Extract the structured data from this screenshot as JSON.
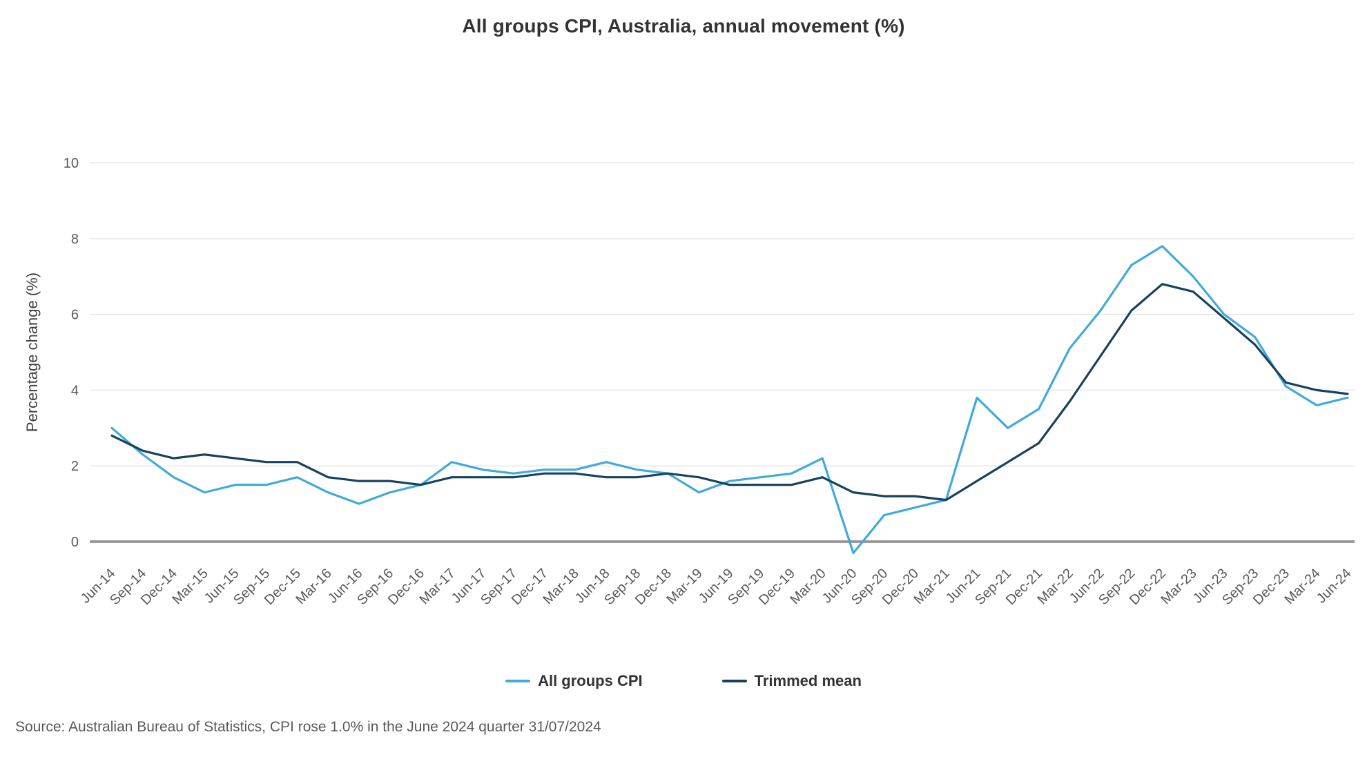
{
  "footer": {
    "source": "Source: Australian Bureau of Statistics, CPI rose 1.0% in the June 2024 quarter 31/07/2024"
  },
  "chart_data": {
    "type": "line",
    "title": "All groups CPI, Australia, annual movement (%)",
    "xlabel": "",
    "ylabel": "Percentage change (%)",
    "ylim": [
      0,
      10
    ],
    "yticks": [
      0,
      2,
      4,
      6,
      8,
      10
    ],
    "grid": "horizontal",
    "legend_position": "bottom-center",
    "categories": [
      "Jun-14",
      "Sep-14",
      "Dec-14",
      "Mar-15",
      "Jun-15",
      "Sep-15",
      "Dec-15",
      "Mar-16",
      "Jun-16",
      "Sep-16",
      "Dec-16",
      "Mar-17",
      "Jun-17",
      "Sep-17",
      "Dec-17",
      "Mar-18",
      "Jun-18",
      "Sep-18",
      "Dec-18",
      "Mar-19",
      "Jun-19",
      "Sep-19",
      "Dec-19",
      "Mar-20",
      "Jun-20",
      "Sep-20",
      "Dec-20",
      "Mar-21",
      "Jun-21",
      "Sep-21",
      "Dec-21",
      "Mar-22",
      "Jun-22",
      "Sep-22",
      "Dec-22",
      "Mar-23",
      "Jun-23",
      "Sep-23",
      "Dec-23",
      "Mar-24",
      "Jun-24"
    ],
    "series": [
      {
        "id": "all-groups-cpi",
        "name": "All groups CPI",
        "color": "#41A9DC",
        "values": [
          3.0,
          2.3,
          1.7,
          1.3,
          1.5,
          1.5,
          1.7,
          1.3,
          1.0,
          1.3,
          1.5,
          2.1,
          1.9,
          1.8,
          1.9,
          1.9,
          2.1,
          1.9,
          1.8,
          1.3,
          1.6,
          1.7,
          1.8,
          2.2,
          -0.3,
          0.7,
          0.9,
          1.1,
          3.8,
          3.0,
          3.5,
          5.1,
          6.1,
          7.3,
          7.8,
          7.0,
          6.0,
          5.4,
          4.1,
          3.6,
          3.8
        ]
      },
      {
        "id": "trimmed-mean",
        "name": "Trimmed mean",
        "color": "#16425F",
        "values": [
          2.8,
          2.4,
          2.2,
          2.3,
          2.2,
          2.1,
          2.1,
          1.7,
          1.6,
          1.6,
          1.5,
          1.7,
          1.7,
          1.7,
          1.8,
          1.8,
          1.7,
          1.7,
          1.8,
          1.7,
          1.5,
          1.5,
          1.5,
          1.7,
          1.3,
          1.2,
          1.2,
          1.1,
          1.6,
          2.1,
          2.6,
          3.7,
          4.9,
          6.1,
          6.8,
          6.6,
          5.9,
          5.2,
          4.2,
          4.0,
          3.9
        ]
      }
    ],
    "colors": {
      "gridline": "#E6E6E6",
      "zero_line": "#9A9A9A",
      "axis_text": "#595959",
      "axis_title_text": "#404040"
    }
  }
}
